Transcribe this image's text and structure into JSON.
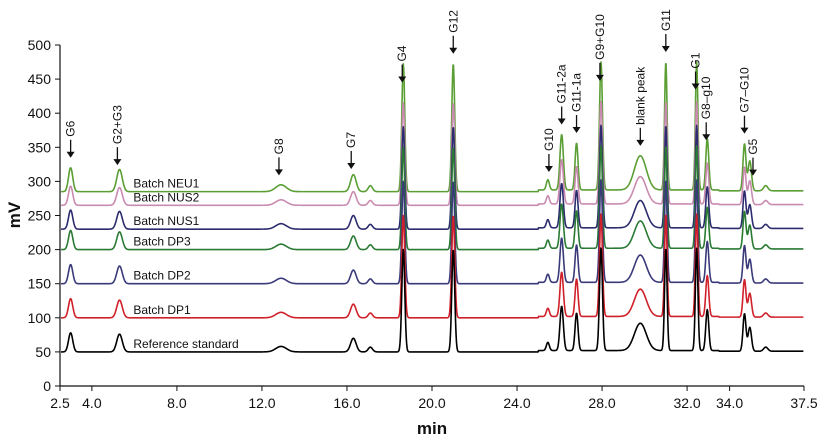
{
  "chart_data": {
    "type": "line",
    "title": "",
    "xlabel": "min",
    "ylabel": "mV",
    "xlim": [
      2.5,
      37.5
    ],
    "ylim": [
      0,
      500
    ],
    "x_ticks": [
      {
        "value": 2.5,
        "label": "2.5"
      },
      {
        "value": 4.0,
        "label": "4.0"
      },
      {
        "value": 8.0,
        "label": "8.0"
      },
      {
        "value": 12.0,
        "label": "12.0"
      },
      {
        "value": 16.0,
        "label": "16.0"
      },
      {
        "value": 20.0,
        "label": "20.0"
      },
      {
        "value": 24.0,
        "label": "24.0"
      },
      {
        "value": 28.0,
        "label": "28.0"
      },
      {
        "value": 32.0,
        "label": "32.0"
      },
      {
        "value": 34.0,
        "label": "34.0"
      },
      {
        "value": 37.5,
        "label": "37.5"
      }
    ],
    "y_ticks": [
      0,
      50,
      100,
      150,
      200,
      250,
      300,
      350,
      400,
      450,
      500
    ],
    "grid": false,
    "peaks": [
      {
        "name": "G6",
        "x": 3.0
      },
      {
        "name": "G2+G3",
        "x": 5.2
      },
      {
        "name": "G8",
        "x": 12.8
      },
      {
        "name": "G7",
        "x": 16.2
      },
      {
        "name": "G4",
        "x": 18.6
      },
      {
        "name": "G12",
        "x": 21.0
      },
      {
        "name": "G10",
        "x": 25.5
      },
      {
        "name": "G11-2a",
        "x": 26.1
      },
      {
        "name": "G11-1a",
        "x": 26.8
      },
      {
        "name": "G9+G10",
        "x": 27.9
      },
      {
        "name": "blank peak",
        "x": 29.8
      },
      {
        "name": "G11",
        "x": 31.0
      },
      {
        "name": "G1",
        "x": 32.4
      },
      {
        "name": "G8–g10",
        "x": 32.9
      },
      {
        "name": "G7–G10",
        "x": 34.7
      },
      {
        "name": "G5",
        "x": 35.1
      }
    ],
    "series": [
      {
        "name": "Reference standard",
        "color": "#000000",
        "baseline": 50
      },
      {
        "name": "Batch DP1",
        "color": "#d0202a",
        "baseline": 100
      },
      {
        "name": "Batch DP2",
        "color": "#3a3a7a",
        "baseline": 150
      },
      {
        "name": "Batch DP3",
        "color": "#2a7a34",
        "baseline": 200
      },
      {
        "name": "Batch NUS1",
        "color": "#2c2c6e",
        "baseline": 230
      },
      {
        "name": "Batch NUS2",
        "color": "#c98bb0",
        "baseline": 265
      },
      {
        "name": "Batch NEU1",
        "color": "#5a9e34",
        "baseline": 285
      }
    ],
    "peak_components": [
      {
        "x": 3.0,
        "w": 0.1,
        "h": 28
      },
      {
        "x": 5.3,
        "w": 0.13,
        "h": 26
      },
      {
        "x": 12.9,
        "w": 0.25,
        "h": 8
      },
      {
        "x": 16.3,
        "w": 0.13,
        "h": 20
      },
      {
        "x": 17.1,
        "w": 0.1,
        "h": 7
      },
      {
        "x": 18.65,
        "w": 0.07,
        "h": 150
      },
      {
        "x": 21.0,
        "w": 0.07,
        "h": 150
      },
      {
        "x": 25.45,
        "w": 0.07,
        "h": 12
      },
      {
        "x": 26.1,
        "w": 0.08,
        "h": 65
      },
      {
        "x": 26.8,
        "w": 0.07,
        "h": 55
      },
      {
        "x": 27.95,
        "w": 0.07,
        "h": 150
      },
      {
        "x": 29.8,
        "w": 0.28,
        "h": 40
      },
      {
        "x": 31.0,
        "w": 0.06,
        "h": 150
      },
      {
        "x": 32.45,
        "w": 0.06,
        "h": 150
      },
      {
        "x": 32.95,
        "w": 0.07,
        "h": 60
      },
      {
        "x": 34.7,
        "w": 0.07,
        "h": 55
      },
      {
        "x": 34.95,
        "w": 0.08,
        "h": 35
      },
      {
        "x": 35.7,
        "w": 0.1,
        "h": 6
      }
    ]
  }
}
